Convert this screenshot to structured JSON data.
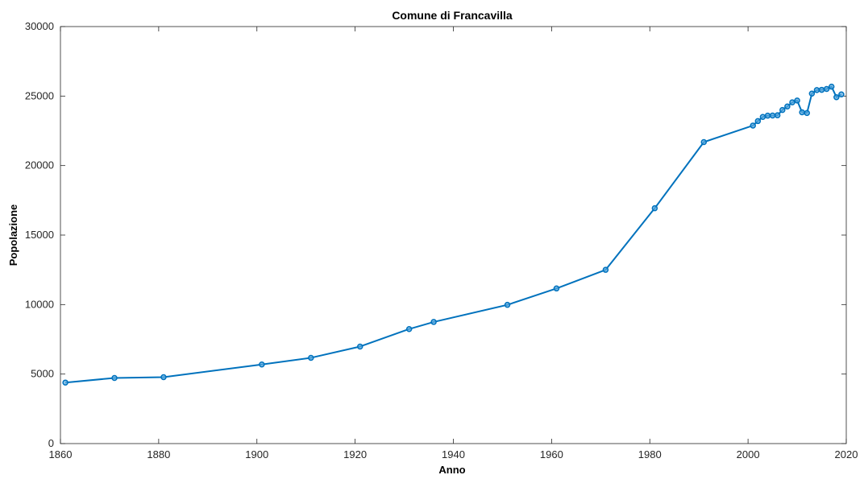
{
  "chart_data": {
    "type": "line",
    "title": "Comune di Francavilla",
    "xlabel": "Anno",
    "ylabel": "Popolazione",
    "xlim": [
      1860,
      2020
    ],
    "ylim": [
      0,
      30000
    ],
    "xticks": [
      1860,
      1880,
      1900,
      1920,
      1940,
      1960,
      1980,
      2000,
      2020
    ],
    "yticks": [
      0,
      5000,
      10000,
      15000,
      20000,
      25000,
      30000
    ],
    "grid": false,
    "series": [
      {
        "color": "#0072BD",
        "marker": "circle",
        "points": [
          {
            "x": 1861,
            "y": 4390
          },
          {
            "x": 1871,
            "y": 4720
          },
          {
            "x": 1881,
            "y": 4780
          },
          {
            "x": 1901,
            "y": 5690
          },
          {
            "x": 1911,
            "y": 6170
          },
          {
            "x": 1921,
            "y": 6980
          },
          {
            "x": 1931,
            "y": 8240
          },
          {
            "x": 1936,
            "y": 8750
          },
          {
            "x": 1951,
            "y": 9980
          },
          {
            "x": 1961,
            "y": 11160
          },
          {
            "x": 1971,
            "y": 12500
          },
          {
            "x": 1981,
            "y": 16930
          },
          {
            "x": 1991,
            "y": 21690
          },
          {
            "x": 2001,
            "y": 22880
          },
          {
            "x": 2002,
            "y": 23200
          },
          {
            "x": 2003,
            "y": 23500
          },
          {
            "x": 2004,
            "y": 23590
          },
          {
            "x": 2005,
            "y": 23600
          },
          {
            "x": 2006,
            "y": 23620
          },
          {
            "x": 2007,
            "y": 24000
          },
          {
            "x": 2008,
            "y": 24250
          },
          {
            "x": 2009,
            "y": 24550
          },
          {
            "x": 2010,
            "y": 24680
          },
          {
            "x": 2011,
            "y": 23830
          },
          {
            "x": 2012,
            "y": 23780
          },
          {
            "x": 2013,
            "y": 25180
          },
          {
            "x": 2014,
            "y": 25430
          },
          {
            "x": 2015,
            "y": 25450
          },
          {
            "x": 2016,
            "y": 25510
          },
          {
            "x": 2017,
            "y": 25680
          },
          {
            "x": 2018,
            "y": 24920
          },
          {
            "x": 2019,
            "y": 25120
          }
        ]
      }
    ]
  }
}
